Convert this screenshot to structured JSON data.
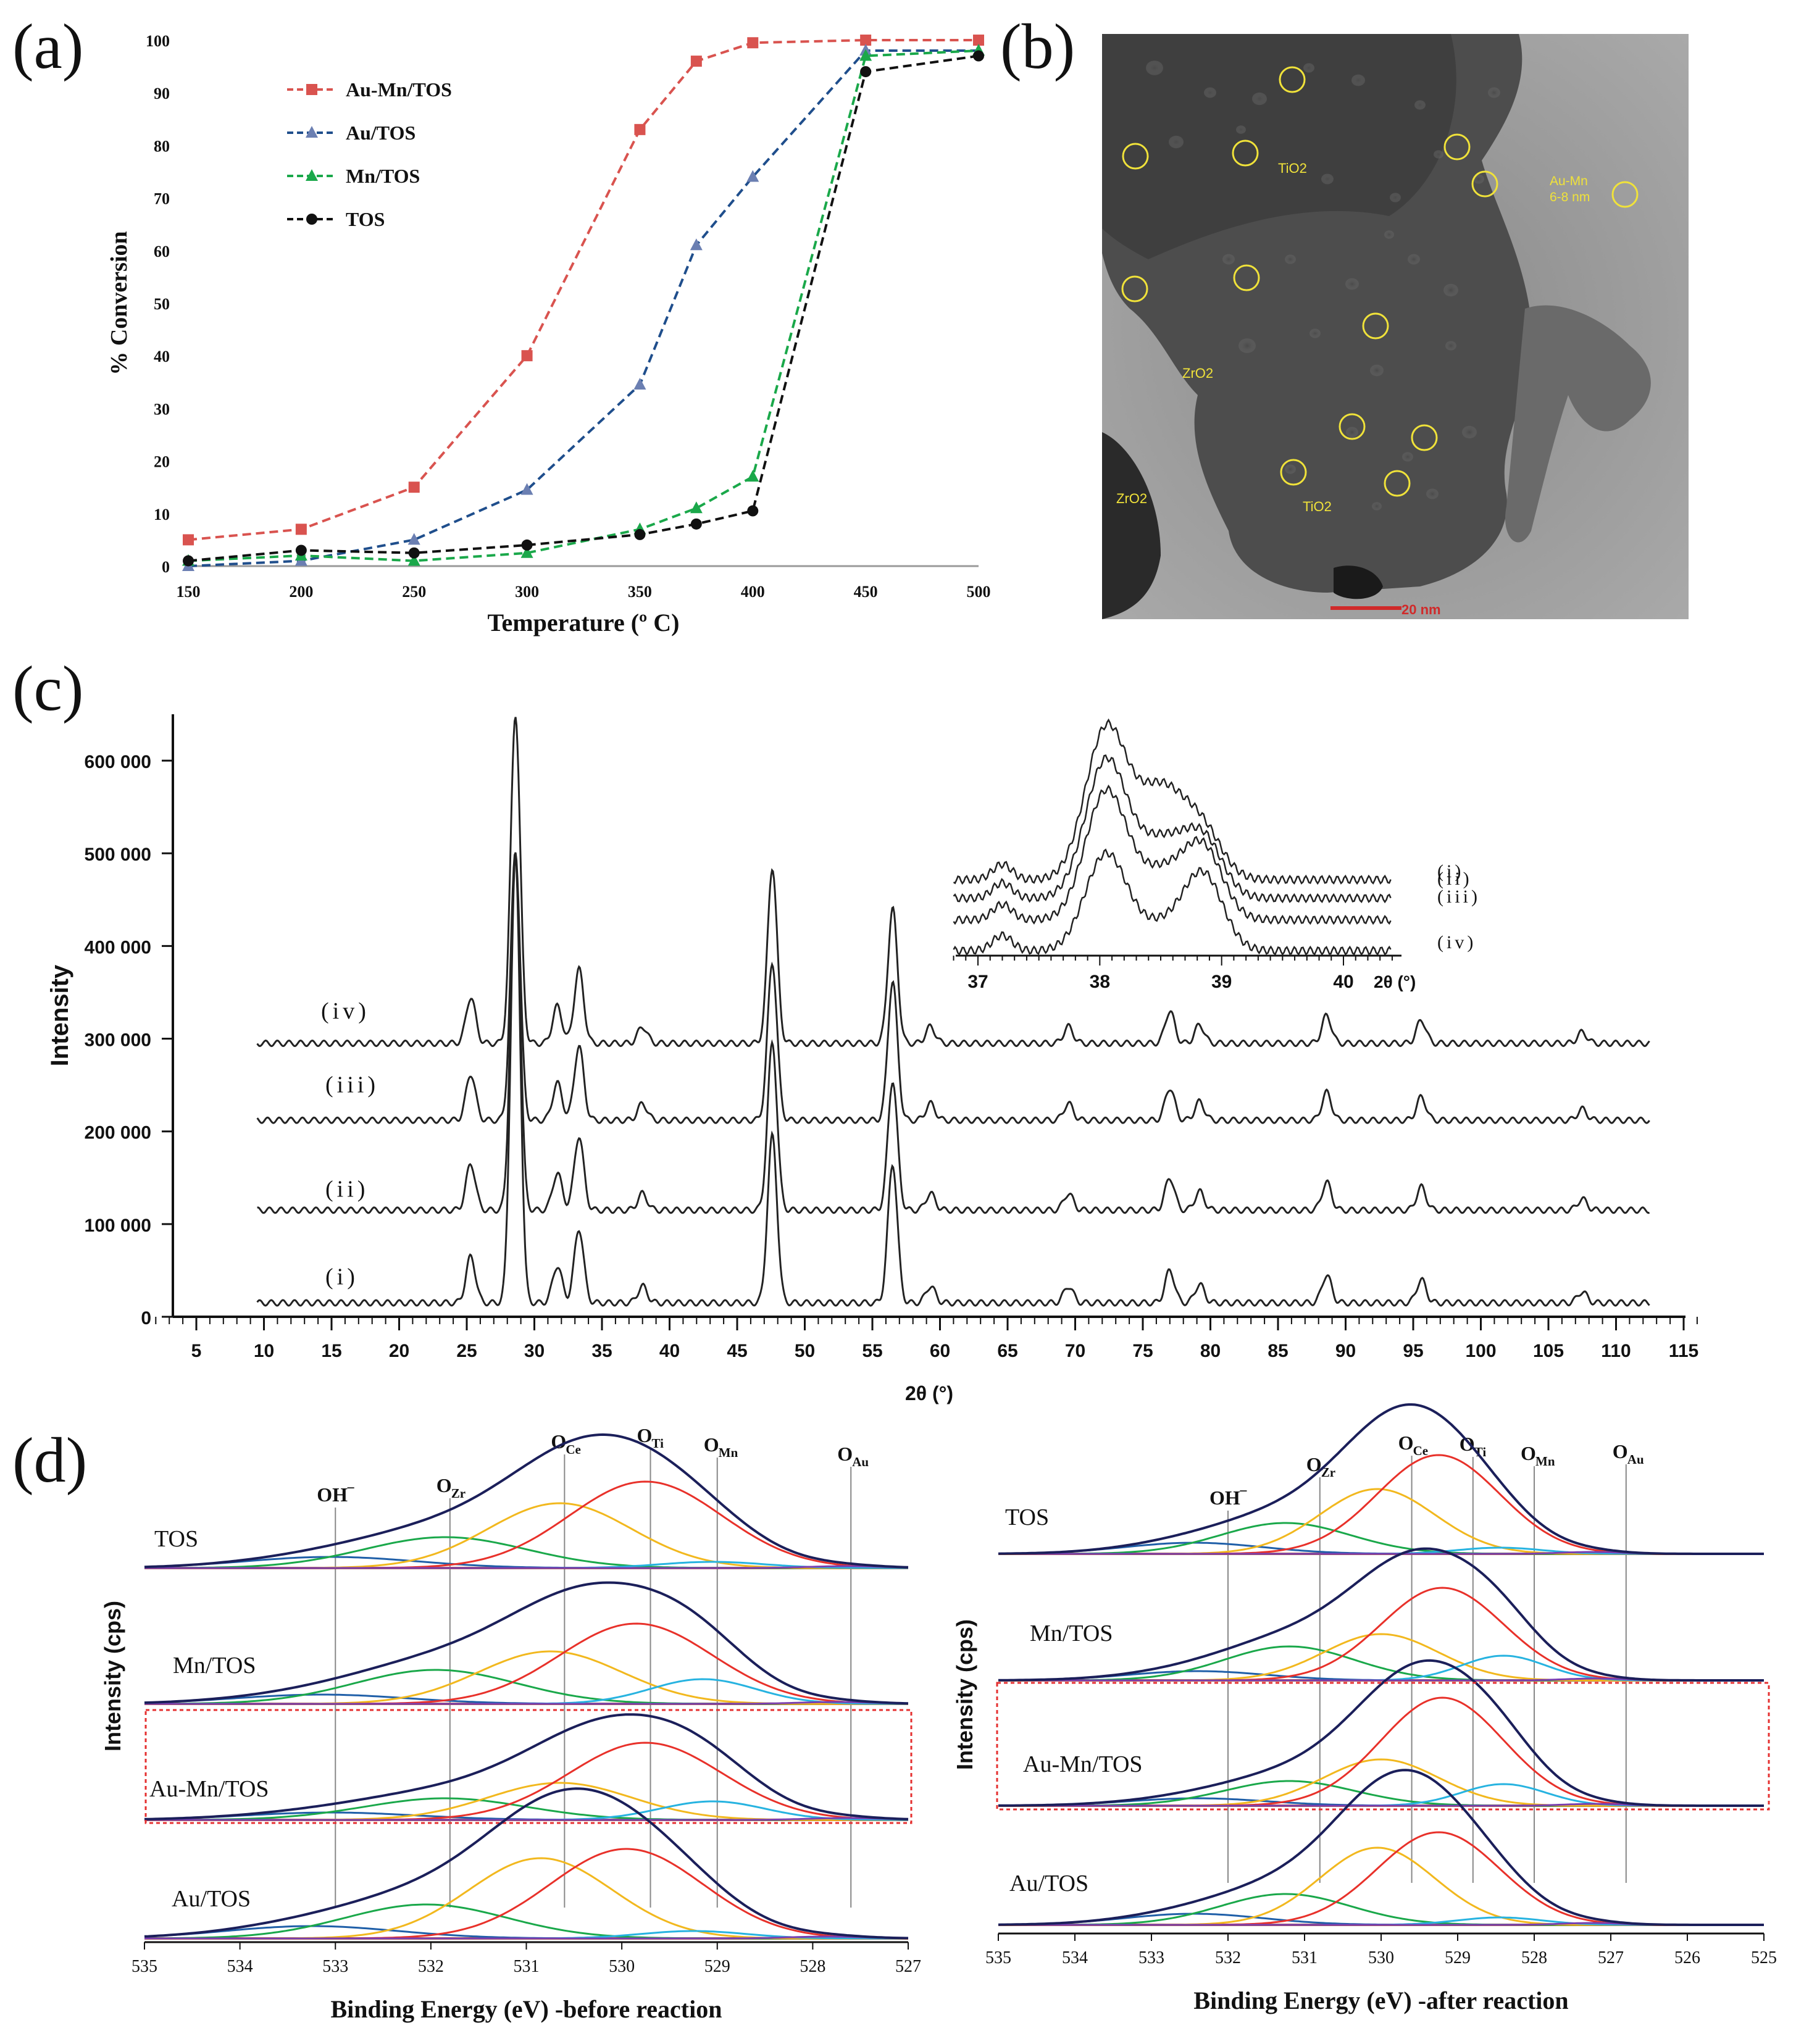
{
  "panels": {
    "a": {
      "letter": "(a)"
    },
    "b": {
      "letter": "(b)"
    },
    "c": {
      "letter": "(c)"
    },
    "d": {
      "letter": "(d)"
    }
  },
  "tem": {
    "labels": [
      {
        "text": "TiO2"
      },
      {
        "text": "ZrO2"
      },
      {
        "text": "ZrO2"
      },
      {
        "text": "TiO2"
      },
      {
        "text": "Au-Mn"
      },
      {
        "text": "6-8 nm"
      }
    ],
    "scale_bar": "20 nm"
  },
  "chart_data": [
    {
      "type": "line",
      "panel": "a",
      "xlabel": "Temperature (º C)",
      "ylabel": "% Conversion",
      "x": [
        150,
        200,
        250,
        300,
        350,
        375,
        400,
        450,
        500
      ],
      "xticks": [
        "150",
        "200",
        "250",
        "300",
        "350",
        "400",
        "450",
        "500"
      ],
      "yticks": [
        "0",
        "10",
        "20",
        "30",
        "40",
        "50",
        "60",
        "70",
        "80",
        "90",
        "100"
      ],
      "xlim": [
        150,
        500
      ],
      "ylim": [
        0,
        100
      ],
      "series": [
        {
          "name": "Au-Mn/TOS",
          "color": "#d9534f",
          "marker": "square",
          "values": [
            5,
            7,
            15,
            40,
            83,
            96,
            99.5,
            100,
            100
          ]
        },
        {
          "name": "Au/TOS",
          "color": "#1f4e8c",
          "marker": "triangle",
          "values": [
            0,
            1,
            5,
            14.5,
            34.5,
            61,
            74,
            98,
            98
          ]
        },
        {
          "name": "Mn/TOS",
          "color": "#1aa84a",
          "marker": "triangle",
          "values": [
            1,
            2,
            1,
            2.5,
            7,
            11,
            17,
            97,
            98
          ]
        },
        {
          "name": "TOS",
          "color": "#111111",
          "marker": "circle",
          "values": [
            1,
            3,
            2.5,
            4,
            6,
            8,
            10.5,
            94,
            97
          ]
        }
      ]
    },
    {
      "type": "line",
      "panel": "c",
      "xlabel": "2θ (°)",
      "ylabel": "Intensity",
      "xticks": [
        "5",
        "10",
        "15",
        "20",
        "25",
        "30",
        "35",
        "40",
        "45",
        "50",
        "55",
        "60",
        "65",
        "70",
        "75",
        "80",
        "85",
        "90",
        "95",
        "100",
        "105",
        "110",
        "115"
      ],
      "yticks": [
        "0",
        "100 000",
        "200 000",
        "300 000",
        "400 000",
        "500 000",
        "600 000"
      ],
      "xlim": [
        2,
        116
      ],
      "ylim": [
        0,
        650000
      ],
      "peaks_2theta": [
        25.3,
        28.6,
        31.7,
        33.3,
        38.0,
        47.6,
        56.5,
        59.3,
        69.5,
        77.0,
        79.2,
        88.6,
        95.6,
        107.5
      ],
      "series": [
        {
          "name": "(i)",
          "offset": 15000
        },
        {
          "name": "(ii)",
          "offset": 115000
        },
        {
          "name": "(iii)",
          "offset": 212000
        },
        {
          "name": "(iv)",
          "offset": 295000
        }
      ],
      "inset": {
        "xticks": [
          "37",
          "38",
          "39",
          "40"
        ],
        "xlabel": "2θ (°)",
        "xlim": [
          36.7,
          40.5
        ],
        "labels": [
          "(i)",
          "(ii)",
          "(iii)",
          "(iv)"
        ]
      }
    },
    {
      "type": "line",
      "panel": "d-left",
      "xlabel": "Binding Energy (eV) -before reaction",
      "ylabel": "Intensity (cps)",
      "xticks": [
        "535",
        "534",
        "533",
        "532",
        "531",
        "530",
        "529",
        "528",
        "527"
      ],
      "xlim": [
        535,
        527
      ],
      "components": [
        "OH⁻",
        "O_Zr",
        "O_Ce",
        "O_Ti",
        "O_Mn",
        "O_Au"
      ],
      "component_positions": [
        533.0,
        531.8,
        530.6,
        529.7,
        529.0,
        527.6
      ],
      "component_colors": [
        "#1f5fa8",
        "#1aa84a",
        "#f2b81e",
        "#e8312a",
        "#27b3e0",
        "#7a3fb0"
      ],
      "samples": [
        "TOS",
        "Mn/TOS",
        "Au-Mn/TOS",
        "Au/TOS"
      ],
      "highlighted": "Au-Mn/TOS"
    },
    {
      "type": "line",
      "panel": "d-right",
      "xlabel": "Binding Energy (eV) -after reaction",
      "ylabel": "Intensity (cps)",
      "xticks": [
        "535",
        "534",
        "533",
        "532",
        "531",
        "530",
        "529",
        "528",
        "527",
        "526",
        "525"
      ],
      "xlim": [
        535,
        525
      ],
      "components": [
        "OH⁻",
        "O_Zr",
        "O_Ce",
        "O_Ti",
        "O_Mn",
        "O_Au"
      ],
      "component_positions": [
        532.0,
        530.8,
        529.6,
        528.8,
        528.0,
        526.8
      ],
      "component_colors": [
        "#1f5fa8",
        "#1aa84a",
        "#f2b81e",
        "#e8312a",
        "#27b3e0",
        "#7a3fb0"
      ],
      "samples": [
        "TOS",
        "Mn/TOS",
        "Au-Mn/TOS",
        "Au/TOS"
      ],
      "highlighted": "Au-Mn/TOS"
    }
  ],
  "xps_label_text": {
    "oh": "OH",
    "oh_sup": "−",
    "o": "O",
    "zr": "Zr",
    "ce": "Ce",
    "ti": "Ti",
    "mn": "Mn",
    "au": "Au"
  }
}
